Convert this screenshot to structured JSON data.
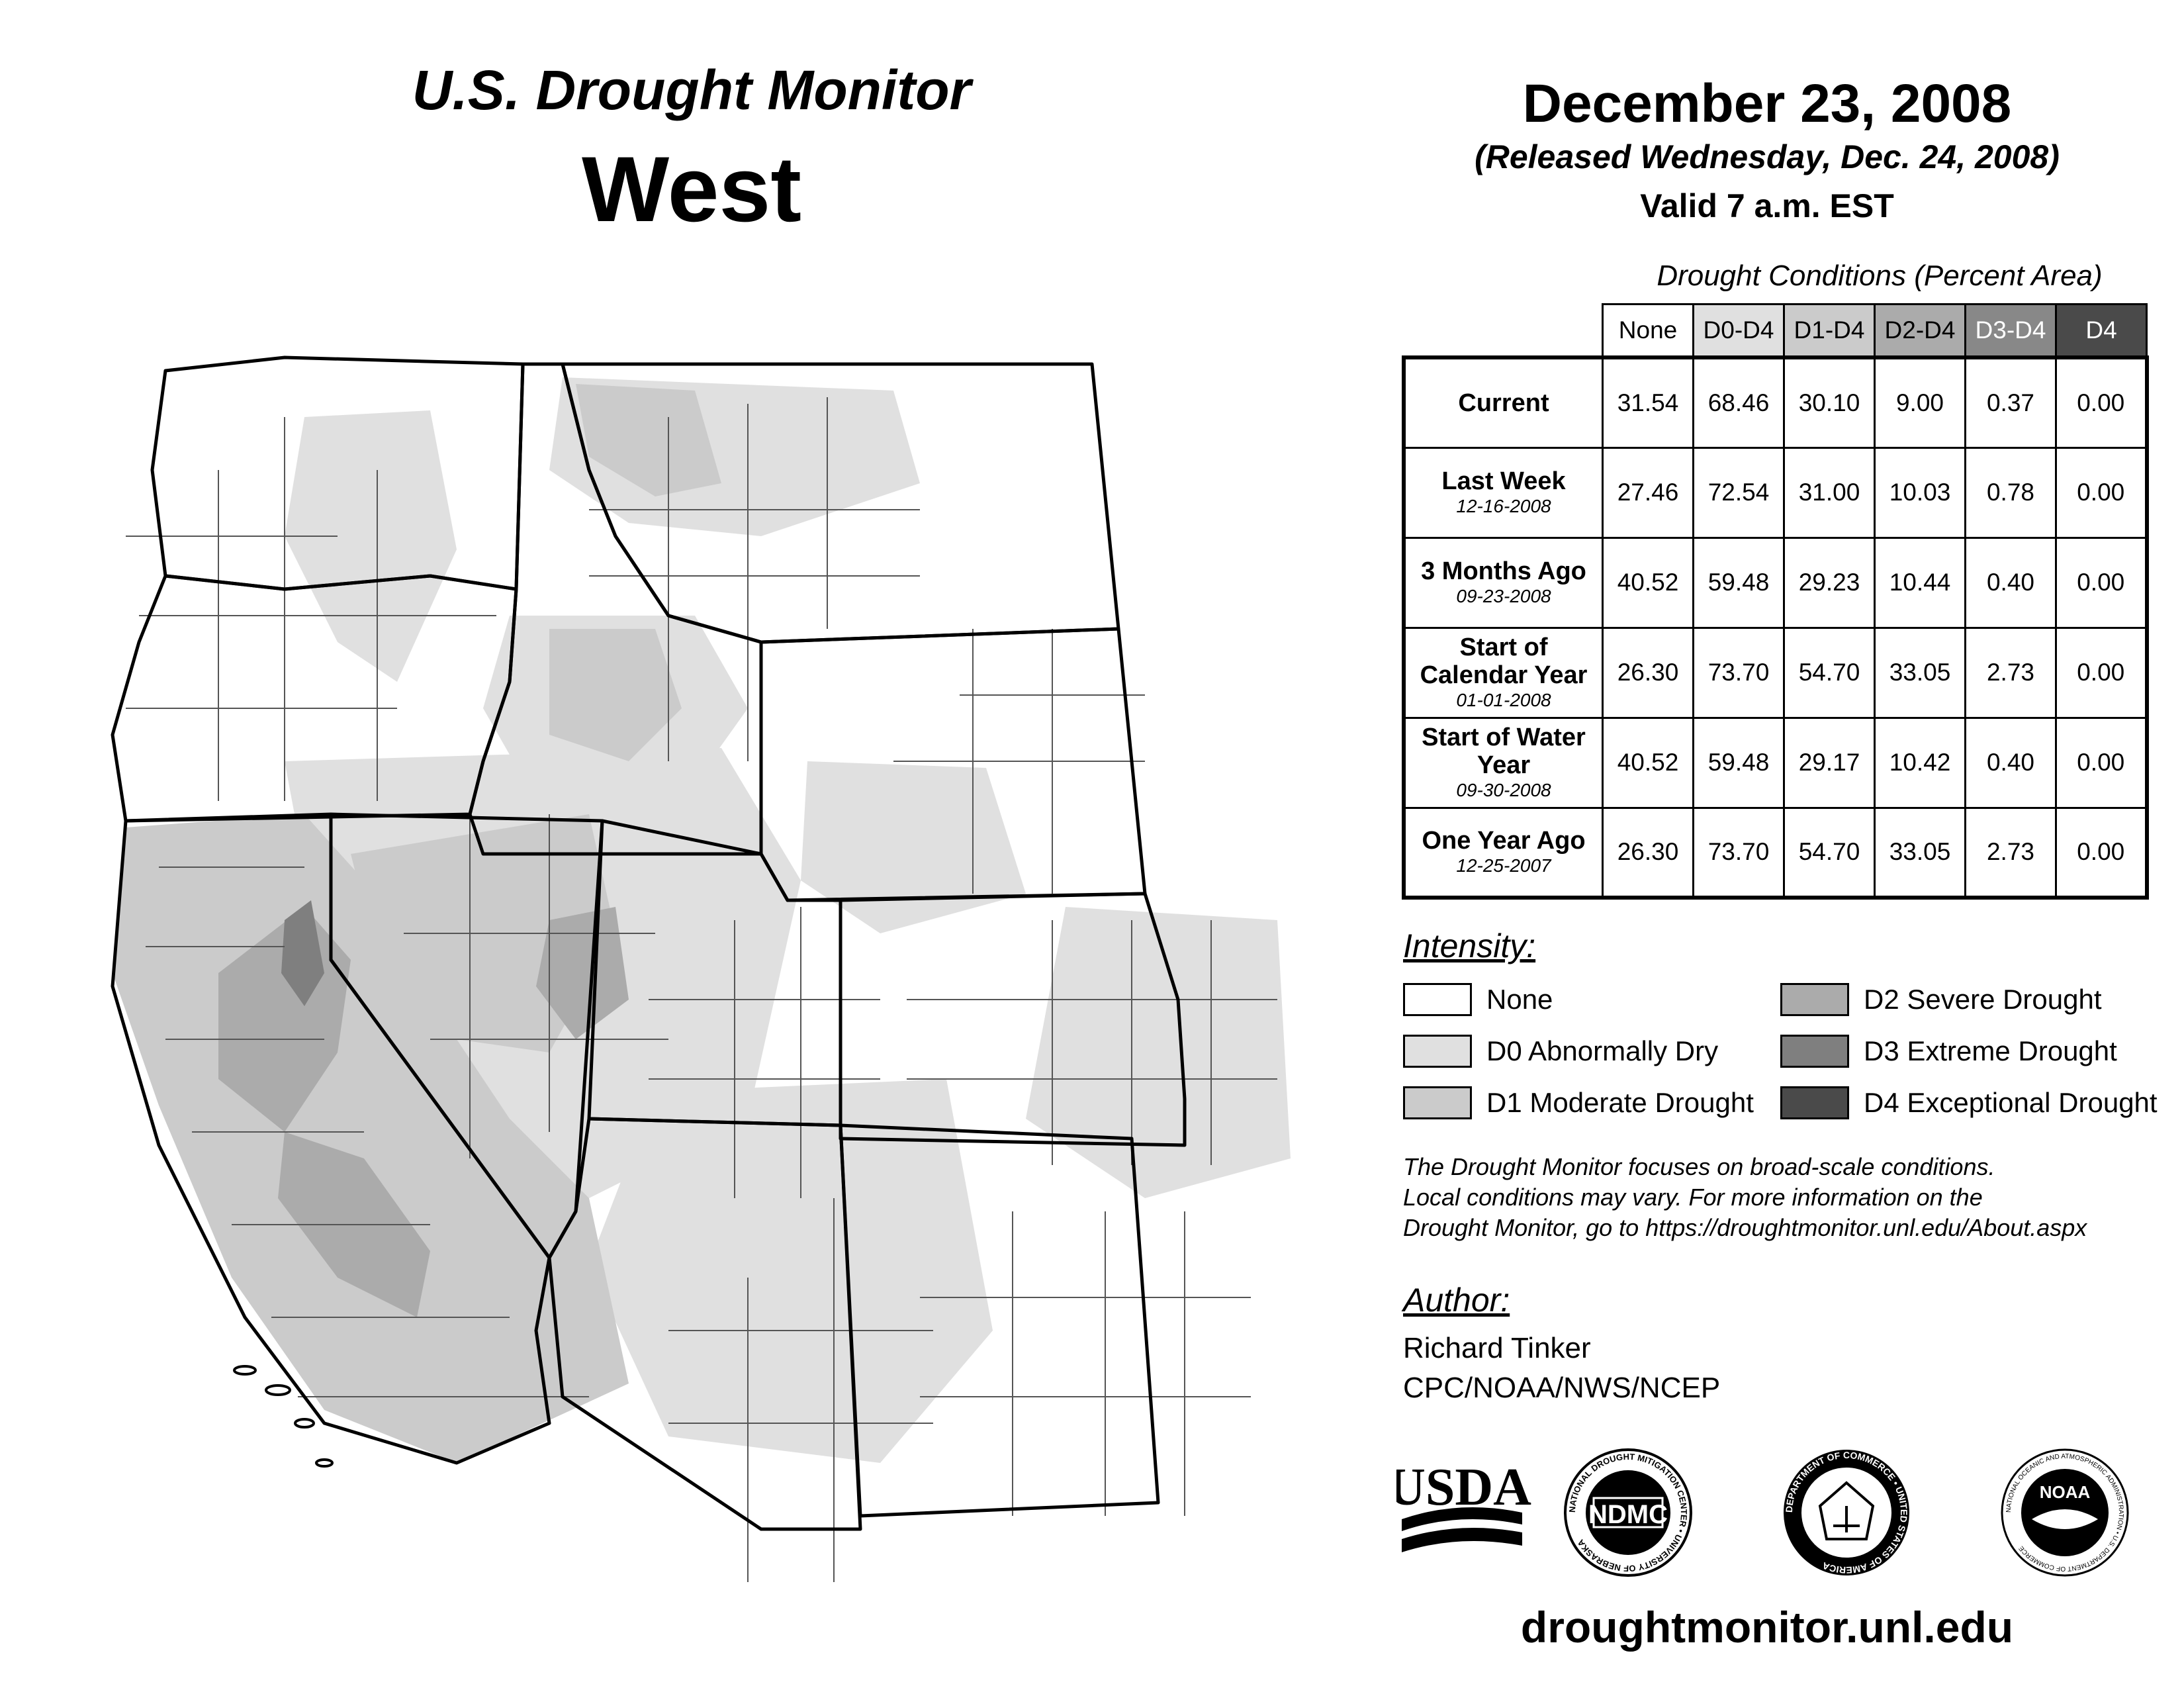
{
  "title": {
    "sub": "U.S. Drought Monitor",
    "main": "West"
  },
  "header": {
    "date": "December 23, 2008",
    "released": "(Released Wednesday, Dec. 24, 2008)",
    "valid": "Valid 7 a.m. EST"
  },
  "table": {
    "caption": "Drought Conditions (Percent Area)",
    "columns": [
      "None",
      "D0-D4",
      "D1-D4",
      "D2-D4",
      "D3-D4",
      "D4"
    ],
    "column_colors": [
      "#ffffff",
      "#e0e0e0",
      "#cbcbcb",
      "#ababab",
      "#888888",
      "#4a4a4a"
    ],
    "rows": [
      {
        "label": "Current",
        "date": "",
        "values": [
          "31.54",
          "68.46",
          "30.10",
          "9.00",
          "0.37",
          "0.00"
        ]
      },
      {
        "label": "Last Week",
        "date": "12-16-2008",
        "values": [
          "27.46",
          "72.54",
          "31.00",
          "10.03",
          "0.78",
          "0.00"
        ]
      },
      {
        "label": "3 Months Ago",
        "date": "09-23-2008",
        "values": [
          "40.52",
          "59.48",
          "29.23",
          "10.44",
          "0.40",
          "0.00"
        ]
      },
      {
        "label": "Start of Calendar Year",
        "date": "01-01-2008",
        "values": [
          "26.30",
          "73.70",
          "54.70",
          "33.05",
          "2.73",
          "0.00"
        ]
      },
      {
        "label": "Start of Water Year",
        "date": "09-30-2008",
        "values": [
          "40.52",
          "59.48",
          "29.17",
          "10.42",
          "0.40",
          "0.00"
        ]
      },
      {
        "label": "One Year Ago",
        "date": "12-25-2007",
        "values": [
          "26.30",
          "73.70",
          "54.70",
          "33.05",
          "2.73",
          "0.00"
        ]
      }
    ]
  },
  "legend": {
    "title": "Intensity:",
    "items": [
      {
        "label": "None",
        "color": "#ffffff"
      },
      {
        "label": "D0 Abnormally Dry",
        "color": "#e0e0e0"
      },
      {
        "label": "D1 Moderate Drought",
        "color": "#cbcbcb"
      },
      {
        "label": "D2 Severe Drought",
        "color": "#ababab"
      },
      {
        "label": "D3 Extreme Drought",
        "color": "#7f7f7f"
      },
      {
        "label": "D4 Exceptional Drought",
        "color": "#4a4a4a"
      }
    ]
  },
  "note": {
    "line1": "The Drought Monitor focuses on broad-scale conditions.",
    "line2": "Local conditions may vary. For more information on the",
    "line3": "Drought Monitor, go to https://droughtmonitor.unl.edu/About.aspx"
  },
  "author": {
    "title": "Author:",
    "name": "Richard Tinker",
    "org": "CPC/NOAA/NWS/NCEP"
  },
  "logos": {
    "usda": "USDA",
    "ndmc": "NDMC",
    "ndmc_ring": "NATIONAL DROUGHT MITIGATION CENTER • UNIVERSITY OF NEBRASKA",
    "doc_ring": "DEPARTMENT OF COMMERCE • UNITED STATES OF AMERICA",
    "noaa": "NOAA",
    "noaa_ring": "NATIONAL OCEANIC AND ATMOSPHERIC ADMINISTRATION • U.S. DEPARTMENT OF COMMERCE"
  },
  "website": "droughtmonitor.unl.edu"
}
